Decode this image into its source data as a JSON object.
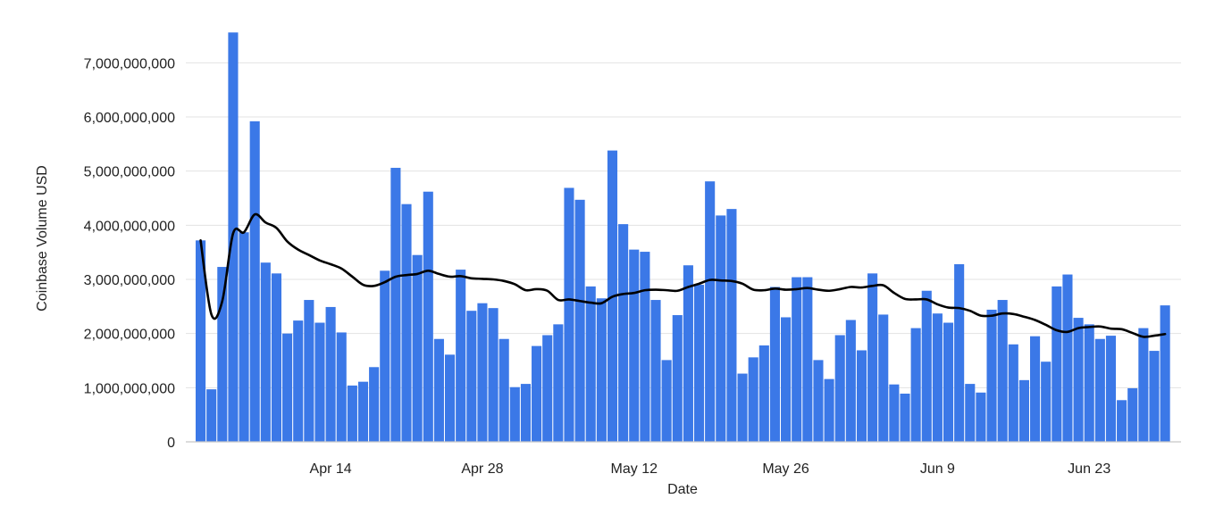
{
  "chart_data": {
    "type": "bar",
    "title": "",
    "xlabel": "Date",
    "ylabel": "Coinbase Volume USD",
    "ylim": [
      0,
      7500000000
    ],
    "y_ticks": [
      0,
      1000000000,
      2000000000,
      3000000000,
      4000000000,
      5000000000,
      6000000000,
      7000000000
    ],
    "y_tick_labels": [
      "0",
      "1,000,000,000",
      "2,000,000,000",
      "3,000,000,000",
      "4,000,000,000",
      "5,000,000,000",
      "6,000,000,000",
      "7,000,000,000"
    ],
    "x_start": "Apr 2",
    "x_tick_labels": [
      {
        "label": "Apr 14",
        "index": 12
      },
      {
        "label": "Apr 28",
        "index": 26
      },
      {
        "label": "May 12",
        "index": 40
      },
      {
        "label": "May 26",
        "index": 54
      },
      {
        "label": "Jun 9",
        "index": 68
      },
      {
        "label": "Jun 23",
        "index": 82
      }
    ],
    "grid": true,
    "bar_color": "#3b78e7",
    "line_color": "#000000",
    "series": [
      {
        "kind": "bar",
        "values": [
          3720000000,
          970000000,
          3230000000,
          7560000000,
          3870000000,
          5920000000,
          3310000000,
          3110000000,
          2000000000,
          2240000000,
          2620000000,
          2200000000,
          2490000000,
          2020000000,
          1040000000,
          1110000000,
          1380000000,
          3160000000,
          5060000000,
          4390000000,
          3450000000,
          4620000000,
          1900000000,
          1610000000,
          3180000000,
          2420000000,
          2560000000,
          2470000000,
          1900000000,
          1010000000,
          1070000000,
          1770000000,
          1970000000,
          2170000000,
          4690000000,
          4470000000,
          2870000000,
          2650000000,
          5380000000,
          4020000000,
          3550000000,
          3510000000,
          2620000000,
          1510000000,
          2340000000,
          3260000000,
          2900000000,
          4810000000,
          4180000000,
          4300000000,
          1260000000,
          1560000000,
          1780000000,
          2860000000,
          2300000000,
          3040000000,
          3040000000,
          1510000000,
          1160000000,
          1970000000,
          2250000000,
          1690000000,
          3110000000,
          2350000000,
          1060000000,
          890000000,
          2100000000,
          2790000000,
          2370000000,
          2200000000,
          3280000000,
          1070000000,
          910000000,
          2440000000,
          2620000000,
          1800000000,
          1140000000,
          1950000000,
          1480000000,
          2870000000,
          3090000000,
          2290000000,
          2170000000,
          1900000000,
          1960000000,
          770000000,
          990000000,
          2100000000,
          1680000000,
          2520000000
        ]
      },
      {
        "kind": "line",
        "values": [
          3720000000,
          2350000000,
          2600000000,
          3850000000,
          3870000000,
          4200000000,
          4050000000,
          3950000000,
          3700000000,
          3550000000,
          3450000000,
          3350000000,
          3280000000,
          3200000000,
          3050000000,
          2900000000,
          2880000000,
          2950000000,
          3050000000,
          3080000000,
          3100000000,
          3160000000,
          3100000000,
          3050000000,
          3060000000,
          3020000000,
          3010000000,
          3000000000,
          2970000000,
          2910000000,
          2800000000,
          2820000000,
          2790000000,
          2620000000,
          2630000000,
          2600000000,
          2570000000,
          2560000000,
          2680000000,
          2730000000,
          2750000000,
          2800000000,
          2810000000,
          2800000000,
          2790000000,
          2860000000,
          2920000000,
          2990000000,
          2980000000,
          2970000000,
          2920000000,
          2810000000,
          2800000000,
          2830000000,
          2810000000,
          2820000000,
          2840000000,
          2810000000,
          2790000000,
          2820000000,
          2860000000,
          2850000000,
          2880000000,
          2890000000,
          2750000000,
          2640000000,
          2630000000,
          2630000000,
          2540000000,
          2480000000,
          2470000000,
          2420000000,
          2330000000,
          2330000000,
          2370000000,
          2360000000,
          2310000000,
          2250000000,
          2160000000,
          2060000000,
          2030000000,
          2100000000,
          2120000000,
          2130000000,
          2090000000,
          2080000000,
          2010000000,
          1940000000,
          1960000000,
          1990000000
        ]
      }
    ]
  }
}
